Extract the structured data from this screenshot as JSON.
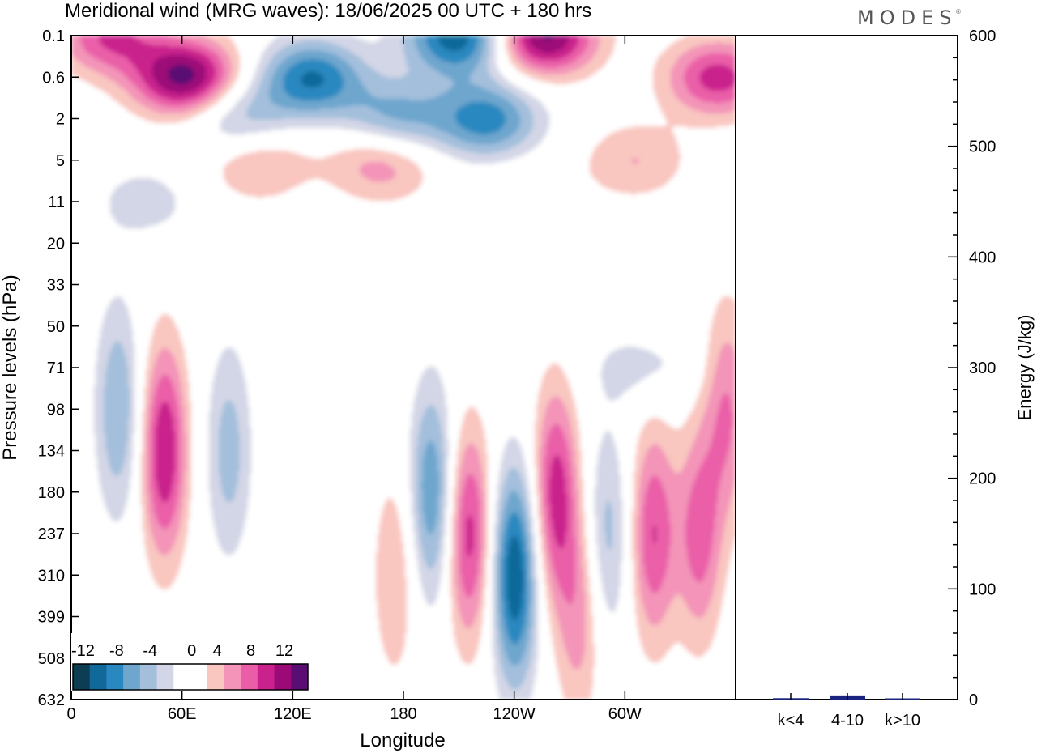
{
  "title": "Meridional wind (MRG waves):  18/06/2025  00 UTC  + 180 hrs",
  "logo": "MODES",
  "logo_mark": "®",
  "colors": {
    "neg": [
      "#0d3d52",
      "#11699a",
      "#2a88c0",
      "#6ea6ce",
      "#a3bfdc",
      "#d3d6e6"
    ],
    "zero": "#ffffff",
    "pos": [
      "#f9c6c0",
      "#f394b8",
      "#ea5ea8",
      "#c9228c",
      "#9c0a78",
      "#5a0d73"
    ],
    "bar": "#1a237e"
  },
  "chart_data": [
    {
      "type": "heatmap",
      "title": "Meridional wind (MRG waves):  18/06/2025  00 UTC  + 180 hrs",
      "xlabel": "Longitude",
      "ylabel": "Pressure levels (hPa)",
      "x_ticks": [
        "0",
        "60E",
        "120E",
        "180",
        "120W",
        "60W"
      ],
      "y_ticks": [
        "0.1",
        "0.6",
        "2",
        "5",
        "11",
        "20",
        "33",
        "50",
        "71",
        "98",
        "134",
        "180",
        "237",
        "310",
        "399",
        "508",
        "632"
      ],
      "colorbar": {
        "labels": [
          "-12",
          "-8",
          "-4",
          "0",
          "4",
          "8",
          "12"
        ]
      },
      "features": [
        {
          "lon": 210,
          "p": "0.1",
          "v": -12
        },
        {
          "lon": 255,
          "p": "0.1",
          "v": 13
        },
        {
          "lon": 130,
          "p": "0.6",
          "v": -10
        },
        {
          "lon": 62,
          "p": "0.6",
          "v": 13
        },
        {
          "lon": 20,
          "p": "0.1",
          "v": 8
        },
        {
          "lon": 350,
          "p": "0.6",
          "v": 9
        },
        {
          "lon": 175,
          "p": "2",
          "v": -7
        },
        {
          "lon": 225,
          "p": "2",
          "v": -9
        },
        {
          "lon": 90,
          "p": "2",
          "v": -6
        },
        {
          "lon": 168,
          "p": "5",
          "v": 6
        },
        {
          "lon": 100,
          "p": "5",
          "v": 5
        },
        {
          "lon": 40,
          "p": "11",
          "v": -3
        },
        {
          "lon": 305,
          "p": "5",
          "v": 4
        },
        {
          "lon": 245,
          "p": "11",
          "v": 2
        },
        {
          "lon": 50,
          "p": "134",
          "v": 10
        },
        {
          "lon": 85,
          "p": "134",
          "v": -5
        },
        {
          "lon": 25,
          "p": "98",
          "v": -6
        },
        {
          "lon": 195,
          "p": "180",
          "v": -8
        },
        {
          "lon": 215,
          "p": "237",
          "v": 9
        },
        {
          "lon": 240,
          "p": "310",
          "v": -12
        },
        {
          "lon": 262,
          "p": "180",
          "v": 9
        },
        {
          "lon": 290,
          "p": "237",
          "v": -5
        },
        {
          "lon": 315,
          "p": "237",
          "v": 8
        },
        {
          "lon": 340,
          "p": "237",
          "v": 7
        },
        {
          "lon": 175,
          "p": "310",
          "v": 4
        },
        {
          "lon": 275,
          "p": "399",
          "v": 5
        },
        {
          "lon": 355,
          "p": "98",
          "v": 6
        },
        {
          "lon": 310,
          "p": "71",
          "v": -3
        }
      ]
    },
    {
      "type": "bar",
      "categories": [
        "k<4",
        "4-10",
        "k>10"
      ],
      "values": [
        0.5,
        1.5,
        0.3
      ],
      "ylabel": "Energy (J/kg)",
      "ylim": [
        0,
        600
      ],
      "y_ticks": [
        0,
        100,
        200,
        300,
        400,
        500,
        600
      ]
    }
  ]
}
